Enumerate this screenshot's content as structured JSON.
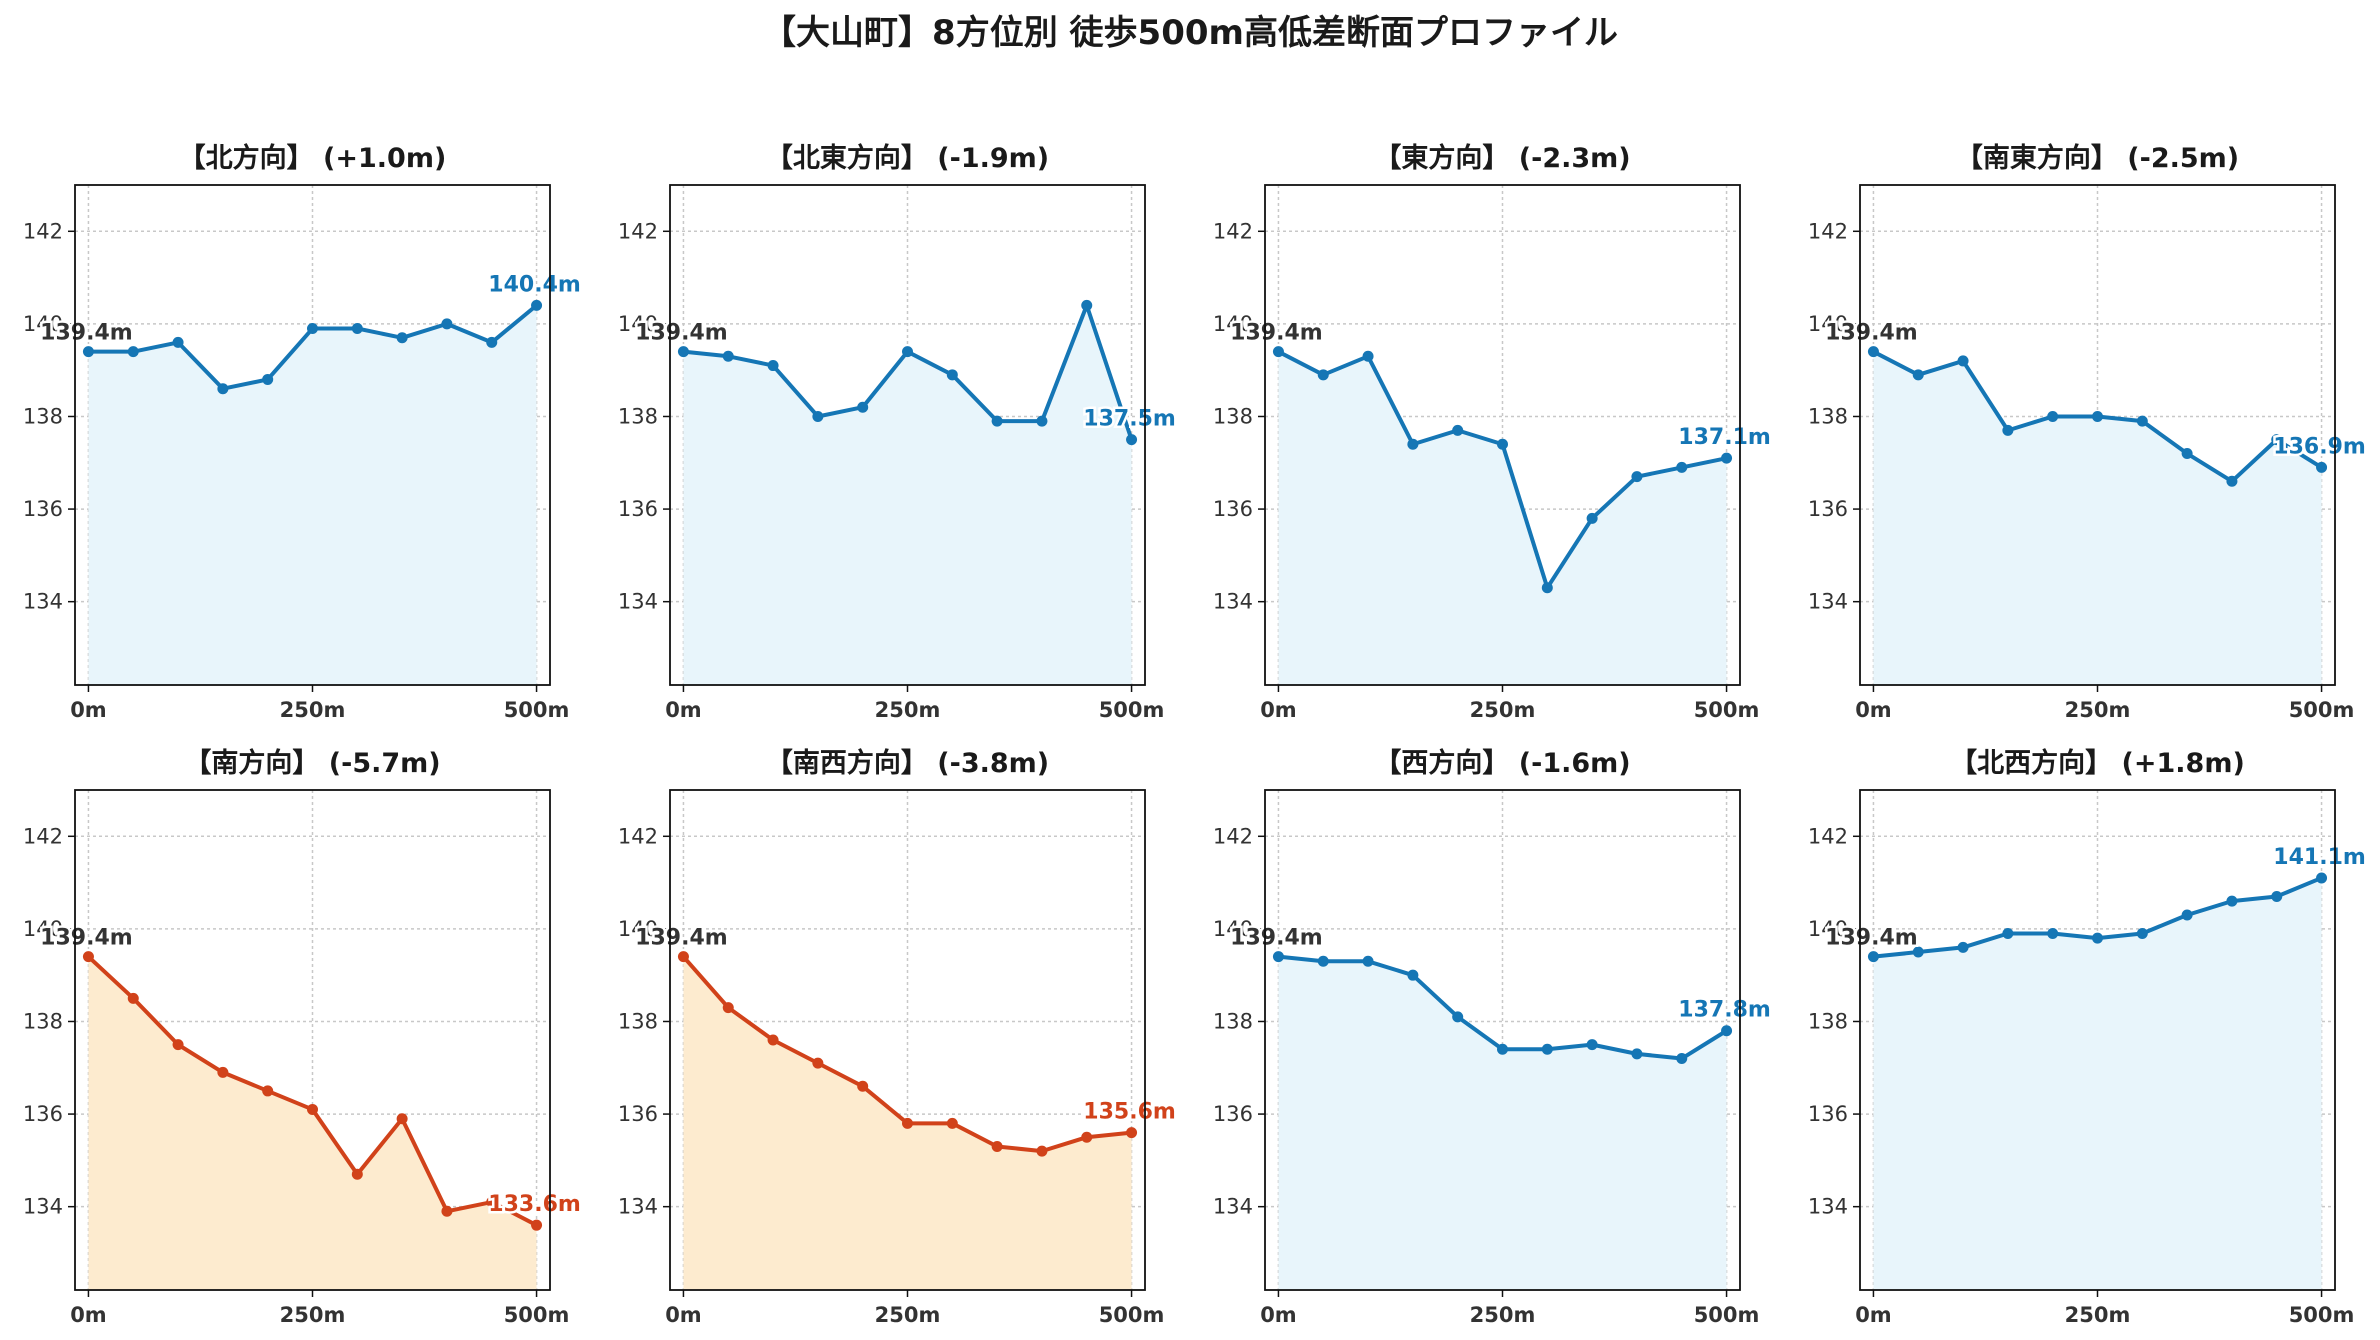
{
  "title": "【大山町】8方位別 徒歩500m高低差断面プロファイル",
  "colors": {
    "up_line": "#1576b5",
    "up_fill": "#e8f5fb",
    "down_line": "#d1421a",
    "down_fill": "#fdebcf",
    "start_label": "#333333"
  },
  "chart_data": [
    {
      "type": "line",
      "title": "【北方向】 (+1.0m)",
      "trend": "up",
      "x": [
        0,
        50,
        100,
        150,
        200,
        250,
        300,
        350,
        400,
        450,
        500
      ],
      "values": [
        139.4,
        139.4,
        139.6,
        138.6,
        138.8,
        139.9,
        139.9,
        139.7,
        140.0,
        139.6,
        140.4
      ],
      "start_label": "139.4m",
      "end_label": "140.4m",
      "xticks": [
        "0m",
        "250m",
        "500m"
      ],
      "yticks": [
        "134",
        "136",
        "138",
        "140",
        "142"
      ],
      "ylim": [
        132.2,
        143.0
      ],
      "xlim": [
        -15,
        515
      ],
      "grid": true
    },
    {
      "type": "line",
      "title": "【北東方向】 (-1.9m)",
      "trend": "up",
      "x": [
        0,
        50,
        100,
        150,
        200,
        250,
        300,
        350,
        400,
        450,
        500
      ],
      "values": [
        139.4,
        139.3,
        139.1,
        138.0,
        138.2,
        139.4,
        138.9,
        137.9,
        137.9,
        140.4,
        137.5
      ],
      "start_label": "139.4m",
      "end_label": "137.5m",
      "xticks": [
        "0m",
        "250m",
        "500m"
      ],
      "yticks": [
        "134",
        "136",
        "138",
        "140",
        "142"
      ],
      "ylim": [
        132.2,
        143.0
      ],
      "xlim": [
        -15,
        515
      ],
      "grid": true
    },
    {
      "type": "line",
      "title": "【東方向】 (-2.3m)",
      "trend": "up",
      "x": [
        0,
        50,
        100,
        150,
        200,
        250,
        300,
        350,
        400,
        450,
        500
      ],
      "values": [
        139.4,
        138.9,
        139.3,
        137.4,
        137.7,
        137.4,
        134.3,
        135.8,
        136.7,
        136.9,
        137.1
      ],
      "start_label": "139.4m",
      "end_label": "137.1m",
      "xticks": [
        "0m",
        "250m",
        "500m"
      ],
      "yticks": [
        "134",
        "136",
        "138",
        "140",
        "142"
      ],
      "ylim": [
        132.2,
        143.0
      ],
      "xlim": [
        -15,
        515
      ],
      "grid": true
    },
    {
      "type": "line",
      "title": "【南東方向】 (-2.5m)",
      "trend": "up",
      "x": [
        0,
        50,
        100,
        150,
        200,
        250,
        300,
        350,
        400,
        450,
        500
      ],
      "values": [
        139.4,
        138.9,
        139.2,
        137.7,
        138.0,
        138.0,
        137.9,
        137.2,
        136.6,
        137.5,
        136.9
      ],
      "start_label": "139.4m",
      "end_label": "136.9m",
      "xticks": [
        "0m",
        "250m",
        "500m"
      ],
      "yticks": [
        "134",
        "136",
        "138",
        "140",
        "142"
      ],
      "ylim": [
        132.2,
        143.0
      ],
      "xlim": [
        -15,
        515
      ],
      "grid": true
    },
    {
      "type": "line",
      "title": "【南方向】 (-5.7m)",
      "trend": "down",
      "x": [
        0,
        50,
        100,
        150,
        200,
        250,
        300,
        350,
        400,
        450,
        500
      ],
      "values": [
        139.4,
        138.5,
        137.5,
        136.9,
        136.5,
        136.1,
        134.7,
        135.9,
        133.9,
        134.1,
        133.6
      ],
      "start_label": "139.4m",
      "end_label": "133.6m",
      "xticks": [
        "0m",
        "250m",
        "500m"
      ],
      "yticks": [
        "134",
        "136",
        "138",
        "140",
        "142"
      ],
      "ylim": [
        132.2,
        143.0
      ],
      "xlim": [
        -15,
        515
      ],
      "grid": true
    },
    {
      "type": "line",
      "title": "【南西方向】 (-3.8m)",
      "trend": "down",
      "x": [
        0,
        50,
        100,
        150,
        200,
        250,
        300,
        350,
        400,
        450,
        500
      ],
      "values": [
        139.4,
        138.3,
        137.6,
        137.1,
        136.6,
        135.8,
        135.8,
        135.3,
        135.2,
        135.5,
        135.6
      ],
      "start_label": "139.4m",
      "end_label": "135.6m",
      "xticks": [
        "0m",
        "250m",
        "500m"
      ],
      "yticks": [
        "134",
        "136",
        "138",
        "140",
        "142"
      ],
      "ylim": [
        132.2,
        143.0
      ],
      "xlim": [
        -15,
        515
      ],
      "grid": true
    },
    {
      "type": "line",
      "title": "【西方向】 (-1.6m)",
      "trend": "up",
      "x": [
        0,
        50,
        100,
        150,
        200,
        250,
        300,
        350,
        400,
        450,
        500
      ],
      "values": [
        139.4,
        139.3,
        139.3,
        139.0,
        138.1,
        137.4,
        137.4,
        137.5,
        137.3,
        137.2,
        137.8
      ],
      "start_label": "139.4m",
      "end_label": "137.8m",
      "xticks": [
        "0m",
        "250m",
        "500m"
      ],
      "yticks": [
        "134",
        "136",
        "138",
        "140",
        "142"
      ],
      "ylim": [
        132.2,
        143.0
      ],
      "xlim": [
        -15,
        515
      ],
      "grid": true
    },
    {
      "type": "line",
      "title": "【北西方向】 (+1.8m)",
      "trend": "up",
      "x": [
        0,
        50,
        100,
        150,
        200,
        250,
        300,
        350,
        400,
        450,
        500
      ],
      "values": [
        139.4,
        139.5,
        139.6,
        139.9,
        139.9,
        139.8,
        139.9,
        140.3,
        140.6,
        140.7,
        141.1
      ],
      "start_label": "139.4m",
      "end_label": "141.1m",
      "xticks": [
        "0m",
        "250m",
        "500m"
      ],
      "yticks": [
        "134",
        "136",
        "138",
        "140",
        "142"
      ],
      "ylim": [
        132.2,
        143.0
      ],
      "xlim": [
        -15,
        515
      ],
      "grid": true
    }
  ]
}
